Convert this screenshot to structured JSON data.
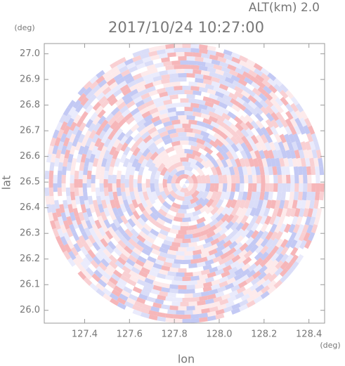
{
  "chart_data": {
    "type": "ppi",
    "title": "2017/10/24 10:27:00",
    "subtitle": "ALT(km) 2.0",
    "x_label": "lon",
    "y_label": "lat",
    "x_unit": "(deg)",
    "y_unit": "(deg)",
    "xlim": [
      127.22,
      128.47
    ],
    "ylim": [
      25.95,
      27.04
    ],
    "xticks": [
      127.4,
      127.6,
      127.8,
      {
        "value": 128.0,
        "label": "128.0"
      },
      128.2,
      128.4
    ],
    "yticks": [
      {
        "value": 26.0,
        "label": "26.0"
      },
      26.1,
      26.2,
      26.3,
      26.4,
      26.5,
      26.6,
      26.7,
      26.8,
      26.9,
      {
        "value": 27.0,
        "label": "27.0"
      }
    ]
  }
}
